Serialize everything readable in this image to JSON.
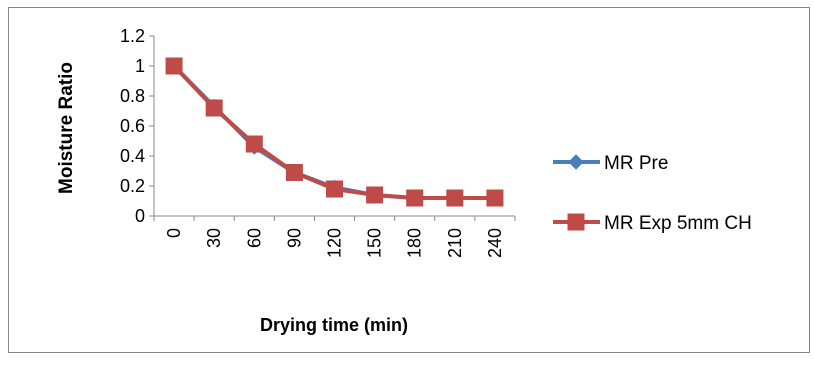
{
  "chart_data": {
    "type": "line",
    "title": "",
    "xlabel": "Drying time (min)",
    "ylabel": "Moisture Ratio",
    "categories": [
      "0",
      "30",
      "60",
      "90",
      "120",
      "150",
      "180",
      "210",
      "240"
    ],
    "ylim": [
      0,
      1.2
    ],
    "yticks": [
      "0",
      "0.2",
      "0.4",
      "0.6",
      "0.8",
      "1",
      "1.2"
    ],
    "grid": false,
    "legend_position": "right",
    "series": [
      {
        "name": "MR Pre",
        "color": "#4a7ebb",
        "marker": "diamond",
        "values": [
          1.0,
          0.73,
          0.46,
          0.29,
          0.19,
          0.14,
          0.12,
          0.12,
          0.12
        ]
      },
      {
        "name": "MR Exp 5mm CH",
        "color": "#be4b48",
        "marker": "square",
        "values": [
          1.0,
          0.72,
          0.48,
          0.29,
          0.18,
          0.14,
          0.12,
          0.12,
          0.12
        ]
      }
    ]
  }
}
